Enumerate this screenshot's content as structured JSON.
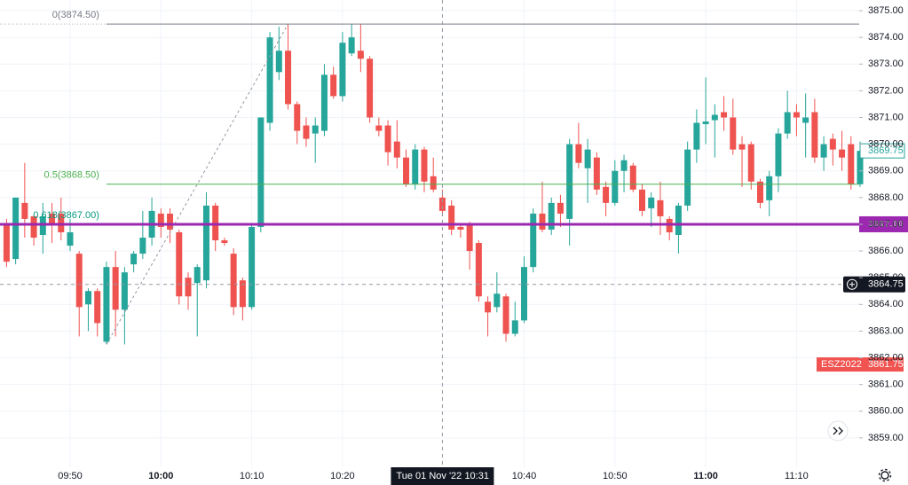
{
  "chart_data": {
    "type": "candlestick",
    "up_color": "#26a69a",
    "down_color": "#ef5350",
    "categories": [
      null,
      null,
      null,
      null,
      null,
      null,
      null,
      "09:50",
      null,
      null,
      null,
      null,
      null,
      null,
      null,
      null,
      null,
      "10:00",
      null,
      null,
      null,
      null,
      null,
      null,
      null,
      null,
      null,
      "10:10",
      null,
      null,
      null,
      null,
      null,
      null,
      null,
      null,
      null,
      "10:20",
      null,
      null,
      null,
      null,
      null,
      null,
      null,
      null,
      null,
      null,
      "10:31",
      null,
      null,
      null,
      null,
      null,
      null,
      null,
      null,
      "10:40",
      null,
      null,
      null,
      null,
      null,
      null,
      null,
      null,
      null,
      "10:50",
      null,
      null,
      null,
      null,
      null,
      null,
      null,
      null,
      null,
      "11:00",
      null,
      null,
      null,
      null,
      null,
      null,
      null,
      null,
      null,
      "11:10",
      null,
      null,
      null,
      null,
      null,
      null,
      null
    ],
    "open": [
      3867.0,
      3865.7,
      3867.8,
      3867.3,
      3866.6,
      3867.4,
      3867.4,
      3866.2,
      3865.9,
      3864.0,
      3864.5,
      3862.6,
      3865.4,
      3863.8,
      3865.5,
      3865.9,
      3866.5,
      3867.4,
      3867.4,
      3866.7,
      3865.0,
      3864.8,
      3864.9,
      3867.7,
      3866.4,
      3865.9,
      3864.9,
      3863.9,
      3866.9,
      3870.8,
      3872.7,
      3873.5,
      3871.5,
      3870.7,
      3870.4,
      3870.5,
      3872.6,
      3871.8,
      3873.4,
      3873.5,
      3873.2,
      3870.7,
      3870.7,
      3870.1,
      3869.5,
      3868.5,
      3869.8,
      3868.8,
      3868.0,
      3867.7,
      3866.9,
      3867.0,
      3866.3,
      3864.1,
      3863.9,
      3864.3,
      3862.9,
      3863.4,
      3865.4,
      3867.4,
      3866.8,
      3867.8,
      3867.2,
      3870.0,
      3869.1,
      3869.5,
      3868.4,
      3867.8,
      3869.0,
      3869.2,
      3868.3,
      3867.6,
      3867.9,
      3867.2,
      3866.6,
      3867.7,
      3869.8,
      3870.75,
      3870.9,
      3871.2,
      3871.0,
      3870.0,
      3870.0,
      3868.6,
      3867.9,
      3868.8,
      3870.4,
      3871.2,
      3870.8,
      3871.2,
      3869.5,
      3870.2,
      3869.8,
      3870.0,
      3868.5
    ],
    "high": [
      3867.2,
      3868.0,
      3869.3,
      3867.3,
      3867.8,
      3867.8,
      3868.0,
      3867.2,
      3866.0,
      3864.6,
      3864.6,
      3865.6,
      3866.0,
      3865.4,
      3866.0,
      3867.5,
      3868.0,
      3867.6,
      3867.6,
      3866.8,
      3865.2,
      3865.5,
      3868.2,
      3867.8,
      3866.5,
      3866.1,
      3865.0,
      3867.0,
      3871.0,
      3874.2,
      3874.4,
      3874.5,
      3871.6,
      3871.0,
      3871.0,
      3873.0,
      3872.9,
      3874.2,
      3874.5,
      3874.5,
      3873.3,
      3871.0,
      3870.9,
      3870.9,
      3869.8,
      3870.0,
      3869.9,
      3869.5,
      3868.3,
      3867.9,
      3867.0,
      3867.1,
      3866.4,
      3864.3,
      3865.2,
      3864.4,
      3864.1,
      3865.8,
      3867.6,
      3868.6,
      3868.0,
      3868.1,
      3870.2,
      3870.8,
      3870.2,
      3869.7,
      3868.6,
      3869.4,
      3869.6,
      3869.3,
      3868.5,
      3868.2,
      3868.6,
      3867.3,
      3867.8,
      3870.1,
      3871.3,
      3872.5,
      3871.5,
      3871.8,
      3871.7,
      3870.3,
      3870.1,
      3868.7,
      3869.0,
      3870.6,
      3872.0,
      3871.5,
      3871.9,
      3871.7,
      3870.3,
      3870.4,
      3870.5,
      3870.3,
      3870.1
    ],
    "low": [
      3865.4,
      3865.5,
      3866.5,
      3866.2,
      3865.9,
      3866.3,
      3866.4,
      3866.0,
      3862.8,
      3863.0,
      3862.8,
      3862.5,
      3862.8,
      3862.5,
      3865.2,
      3865.7,
      3866.2,
      3866.5,
      3866.3,
      3864.0,
      3863.8,
      3862.8,
      3864.6,
      3866.0,
      3866.2,
      3863.6,
      3863.4,
      3863.8,
      3866.7,
      3870.5,
      3872.4,
      3871.3,
      3870.0,
      3869.9,
      3869.3,
      3870.3,
      3871.7,
      3871.6,
      3873.3,
      3872.7,
      3870.8,
      3870.3,
      3869.2,
      3869.1,
      3868.4,
      3868.3,
      3868.2,
      3868.2,
      3867.3,
      3866.6,
      3866.5,
      3865.3,
      3864.1,
      3862.8,
      3863.7,
      3862.6,
      3862.8,
      3863.3,
      3865.2,
      3866.7,
      3866.6,
      3866.9,
      3866.2,
      3869.1,
      3867.8,
      3868.1,
      3867.3,
      3867.7,
      3868.2,
      3868.2,
      3867.3,
      3866.9,
      3866.6,
      3866.4,
      3865.9,
      3867.5,
      3869.3,
      3870.0,
      3869.5,
      3870.5,
      3869.6,
      3868.4,
      3868.3,
      3867.6,
      3867.3,
      3868.2,
      3870.2,
      3870.3,
      3869.5,
      3869.3,
      3869.0,
      3869.2,
      3869.0,
      3868.3,
      3868.4
    ],
    "close": [
      3865.6,
      3868.0,
      3867.2,
      3866.5,
      3867.3,
      3867.0,
      3866.7,
      3866.7,
      3863.9,
      3864.5,
      3863.3,
      3865.4,
      3863.8,
      3865.2,
      3865.9,
      3866.5,
      3867.5,
      3866.9,
      3866.8,
      3864.3,
      3864.3,
      3865.4,
      3867.7,
      3866.4,
      3866.3,
      3863.9,
      3863.9,
      3866.9,
      3871.0,
      3874.0,
      3873.5,
      3871.5,
      3870.5,
      3870.2,
      3870.7,
      3872.6,
      3871.8,
      3873.8,
      3874.0,
      3873.2,
      3871.0,
      3870.5,
      3869.7,
      3869.5,
      3868.5,
      3869.8,
      3868.6,
      3868.3,
      3867.5,
      3866.8,
      3866.8,
      3866.0,
      3864.3,
      3863.7,
      3864.4,
      3862.9,
      3863.4,
      3865.4,
      3867.4,
      3866.8,
      3867.8,
      3867.4,
      3870.0,
      3869.3,
      3869.8,
      3868.3,
      3867.8,
      3869.0,
      3869.4,
      3868.3,
      3867.5,
      3868.0,
      3867.3,
      3866.7,
      3867.7,
      3869.8,
      3870.8,
      3870.85,
      3871.1,
      3871.0,
      3869.8,
      3869.8,
      3868.6,
      3867.8,
      3868.8,
      3870.4,
      3871.2,
      3871.0,
      3871.0,
      3869.5,
      3870.0,
      3869.8,
      3869.5,
      3868.5,
      3869.75
    ],
    "ylim": [
      3857.9,
      3875.4
    ],
    "yticks": [
      {
        "value": 3859,
        "label": "3859.00"
      },
      {
        "value": 3860,
        "label": "3860.00"
      },
      {
        "value": 3861,
        "label": "3861.00"
      },
      {
        "value": 3862,
        "label": "3862.00"
      },
      {
        "value": 3863,
        "label": "3863.00"
      },
      {
        "value": 3864,
        "label": "3864.00"
      },
      {
        "value": 3865,
        "label": "3865.00"
      },
      {
        "value": 3866,
        "label": "3866.00"
      },
      {
        "value": 3867,
        "label": "3867.00"
      },
      {
        "value": 3868,
        "label": "3868.00"
      },
      {
        "value": 3869,
        "label": "3869.00"
      },
      {
        "value": 3870,
        "label": "3870.00"
      },
      {
        "value": 3871,
        "label": "3871.00"
      },
      {
        "value": 3872,
        "label": "3872.00"
      },
      {
        "value": 3873,
        "label": "3873.00"
      },
      {
        "value": 3874,
        "label": "3874.00"
      },
      {
        "value": 3875,
        "label": "3875.00"
      }
    ],
    "grid": true,
    "fib_levels": [
      {
        "label": "0(3874.50)",
        "value": 3874.5,
        "color": "#787b86"
      },
      {
        "label": "0.5(3868.50)",
        "value": 3868.5,
        "color": "#4caf50"
      },
      {
        "label": "0.618(3867.00)",
        "value": 3867,
        "color": "#089981"
      }
    ],
    "horizontal_line": {
      "value": 3867,
      "label": "3867.00",
      "color": "#9c27b0"
    },
    "symbol_label": {
      "name": "ESZ2022",
      "value": 3861.75,
      "color": "#f05350"
    },
    "crosshair": {
      "date": "Tue 01 Nov '22",
      "at": "10:31",
      "value": 3864.75
    }
  }
}
